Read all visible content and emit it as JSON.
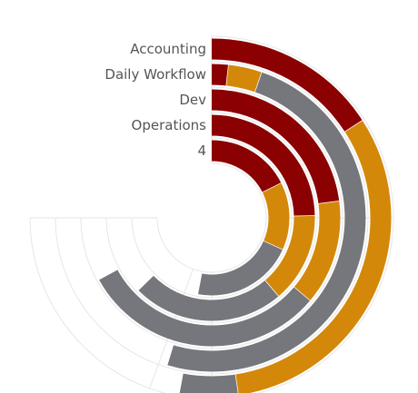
{
  "chart_data": {
    "type": "radial-bar",
    "categories": [
      "Accounting",
      "Daily Workflow",
      "Dev",
      "Operations",
      "4"
    ],
    "series": [
      {
        "color": "#8b0000",
        "values": [
          18,
          2,
          26,
          28,
          20
        ]
      },
      {
        "color": "#d4880a",
        "values": [
          36,
          4,
          15,
          16,
          16
        ]
      },
      {
        "color": "#76777c",
        "values": [
          6,
          56,
          35,
          27,
          24
        ]
      }
    ],
    "scale_max": 85,
    "grid": true
  }
}
